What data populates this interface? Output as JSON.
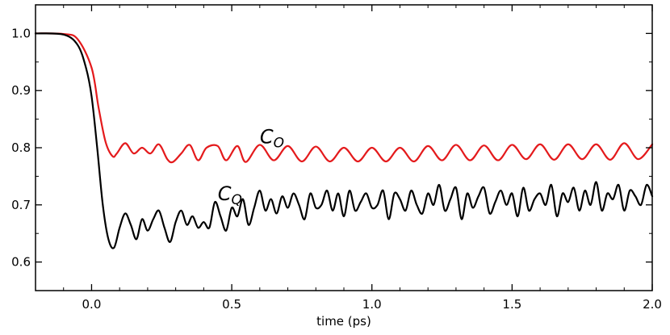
{
  "chart_data": {
    "type": "line",
    "title": "",
    "xlabel": "time (ps)",
    "ylabel": "",
    "xlim": [
      -0.2,
      2.0
    ],
    "ylim": [
      0.55,
      1.05
    ],
    "xticks": [
      0.0,
      0.5,
      1.0,
      1.5,
      2.0
    ],
    "xtick_labels": [
      "0.0",
      "0.5",
      "1.0",
      "1.5",
      "2.0"
    ],
    "yticks": [
      0.6,
      0.7,
      0.8,
      0.9,
      1.0
    ],
    "ytick_labels": [
      "0.6",
      "0.7",
      "0.8",
      "0.9",
      "1.0"
    ],
    "grid": false,
    "legend": "none",
    "annotations": [
      {
        "main": "C",
        "sub": "O",
        "x": 0.6,
        "y": 0.808,
        "color": "#000000"
      },
      {
        "main": "C",
        "sub": "Q",
        "x": 0.45,
        "y": 0.708,
        "color": "#000000"
      }
    ],
    "series": [
      {
        "color": "#e41a1c",
        "x": [
          -0.2,
          -0.1,
          -0.05,
          0.0,
          0.025,
          0.05,
          0.075,
          0.09,
          0.12,
          0.15,
          0.18,
          0.21,
          0.24,
          0.27,
          0.29,
          0.32,
          0.35,
          0.38,
          0.41,
          0.45,
          0.48,
          0.52,
          0.55,
          0.6,
          0.65,
          0.7,
          0.75,
          0.8,
          0.85,
          0.9,
          0.95,
          1.0,
          1.05,
          1.1,
          1.15,
          1.2,
          1.25,
          1.3,
          1.35,
          1.4,
          1.45,
          1.5,
          1.55,
          1.6,
          1.65,
          1.7,
          1.75,
          1.8,
          1.85,
          1.9,
          1.95,
          2.0
        ],
        "y": [
          1.0,
          0.999,
          0.99,
          0.94,
          0.87,
          0.81,
          0.785,
          0.79,
          0.808,
          0.79,
          0.8,
          0.79,
          0.806,
          0.78,
          0.775,
          0.79,
          0.805,
          0.778,
          0.8,
          0.803,
          0.778,
          0.803,
          0.775,
          0.805,
          0.778,
          0.803,
          0.776,
          0.802,
          0.776,
          0.8,
          0.776,
          0.8,
          0.776,
          0.8,
          0.776,
          0.803,
          0.778,
          0.805,
          0.778,
          0.804,
          0.778,
          0.805,
          0.78,
          0.806,
          0.779,
          0.806,
          0.78,
          0.806,
          0.779,
          0.808,
          0.78,
          0.806
        ]
      },
      {
        "color": "#000000",
        "x": [
          -0.2,
          -0.1,
          -0.05,
          -0.02,
          0.0,
          0.02,
          0.04,
          0.06,
          0.08,
          0.1,
          0.12,
          0.14,
          0.16,
          0.18,
          0.2,
          0.22,
          0.24,
          0.26,
          0.28,
          0.3,
          0.32,
          0.34,
          0.36,
          0.38,
          0.4,
          0.42,
          0.44,
          0.46,
          0.48,
          0.5,
          0.52,
          0.54,
          0.56,
          0.58,
          0.6,
          0.62,
          0.64,
          0.66,
          0.68,
          0.7,
          0.72,
          0.74,
          0.76,
          0.78,
          0.8,
          0.82,
          0.84,
          0.86,
          0.88,
          0.9,
          0.92,
          0.94,
          0.96,
          0.98,
          1.0,
          1.02,
          1.04,
          1.06,
          1.08,
          1.1,
          1.12,
          1.14,
          1.16,
          1.18,
          1.2,
          1.22,
          1.24,
          1.26,
          1.28,
          1.3,
          1.32,
          1.34,
          1.36,
          1.38,
          1.4,
          1.42,
          1.44,
          1.46,
          1.48,
          1.5,
          1.52,
          1.54,
          1.56,
          1.58,
          1.6,
          1.62,
          1.64,
          1.66,
          1.68,
          1.7,
          1.72,
          1.74,
          1.76,
          1.78,
          1.8,
          1.82,
          1.84,
          1.86,
          1.88,
          1.9,
          1.92,
          1.94,
          1.96,
          1.98,
          2.0
        ],
        "y": [
          1.0,
          0.998,
          0.98,
          0.94,
          0.89,
          0.8,
          0.7,
          0.64,
          0.625,
          0.66,
          0.685,
          0.665,
          0.64,
          0.675,
          0.655,
          0.675,
          0.69,
          0.66,
          0.635,
          0.67,
          0.69,
          0.665,
          0.68,
          0.66,
          0.67,
          0.66,
          0.705,
          0.68,
          0.655,
          0.695,
          0.68,
          0.71,
          0.665,
          0.695,
          0.725,
          0.69,
          0.71,
          0.685,
          0.715,
          0.695,
          0.72,
          0.7,
          0.675,
          0.72,
          0.695,
          0.7,
          0.725,
          0.69,
          0.72,
          0.68,
          0.725,
          0.69,
          0.705,
          0.72,
          0.695,
          0.7,
          0.725,
          0.675,
          0.72,
          0.71,
          0.69,
          0.725,
          0.7,
          0.685,
          0.72,
          0.7,
          0.735,
          0.69,
          0.71,
          0.73,
          0.675,
          0.72,
          0.695,
          0.715,
          0.73,
          0.685,
          0.705,
          0.725,
          0.7,
          0.72,
          0.68,
          0.73,
          0.69,
          0.71,
          0.72,
          0.7,
          0.735,
          0.68,
          0.72,
          0.705,
          0.73,
          0.69,
          0.725,
          0.7,
          0.74,
          0.69,
          0.72,
          0.71,
          0.735,
          0.69,
          0.725,
          0.715,
          0.7,
          0.735,
          0.715
        ]
      }
    ]
  }
}
